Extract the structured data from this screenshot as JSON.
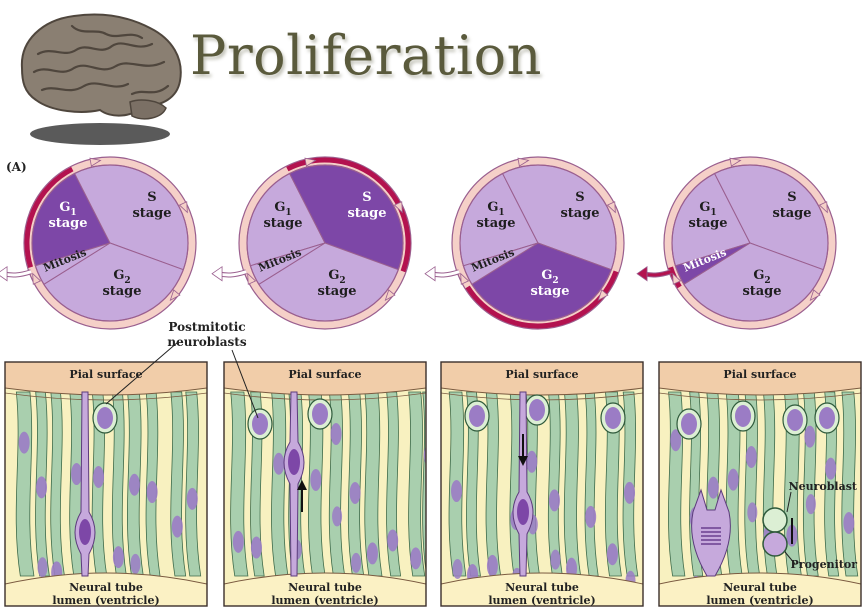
{
  "title": "Proliferation",
  "panel_label": "(A)",
  "cycles": [
    {
      "active": "G1",
      "labels": {
        "g1": "G",
        "g1_sub": "1",
        "g1_word": "stage",
        "s": "S",
        "s_word": "stage",
        "g2": "G",
        "g2_sub": "2",
        "g2_word": "stage",
        "mitosis": "Mitosis"
      }
    },
    {
      "active": "S",
      "labels": {
        "g1": "G",
        "g1_sub": "1",
        "g1_word": "stage",
        "s": "S",
        "s_word": "stage",
        "g2": "G",
        "g2_sub": "2",
        "g2_word": "stage",
        "mitosis": "Mitosis"
      }
    },
    {
      "active": "G2",
      "labels": {
        "g1": "G",
        "g1_sub": "1",
        "g1_word": "stage",
        "s": "S",
        "s_word": "stage",
        "g2": "G",
        "g2_sub": "2",
        "g2_word": "stage",
        "mitosis": "Mitosis"
      }
    },
    {
      "active": "Mitosis",
      "labels": {
        "g1": "G",
        "g1_sub": "1",
        "g1_word": "stage",
        "s": "S",
        "s_word": "stage",
        "g2": "G",
        "g2_sub": "2",
        "g2_word": "stage",
        "mitosis": "Mitosis"
      }
    }
  ],
  "postmitotic_label": [
    "Postmitotic",
    "neuroblasts"
  ],
  "tissue_panels": [
    {
      "top": "Pial surface",
      "bottom": [
        "Neural tube",
        "lumen (ventricle)"
      ]
    },
    {
      "top": "Pial surface",
      "bottom": [
        "Neural tube",
        "lumen (ventricle)"
      ]
    },
    {
      "top": "Pial surface",
      "bottom": [
        "Neural tube",
        "lumen (ventricle)"
      ]
    },
    {
      "top": "Pial surface",
      "bottom": [
        "Neural tube",
        "lumen (ventricle)"
      ]
    }
  ],
  "annotations": {
    "neuroblast": "Neuroblast",
    "progenitor": "Progenitor"
  },
  "colors": {
    "sector_light": "#c6a9dc",
    "sector_dark": "#7d47a7",
    "ring": "#f5d0c8",
    "ring_edge": "#9a5f8f",
    "active_arc": "#b3124f",
    "pial": "#f1cda9",
    "lumen": "#fbf1c4",
    "tissue_bg": "#f8f1c0",
    "fiber": "#a9cfae",
    "nucleus": "#9b7cc5",
    "title": "#5a5a3c"
  }
}
